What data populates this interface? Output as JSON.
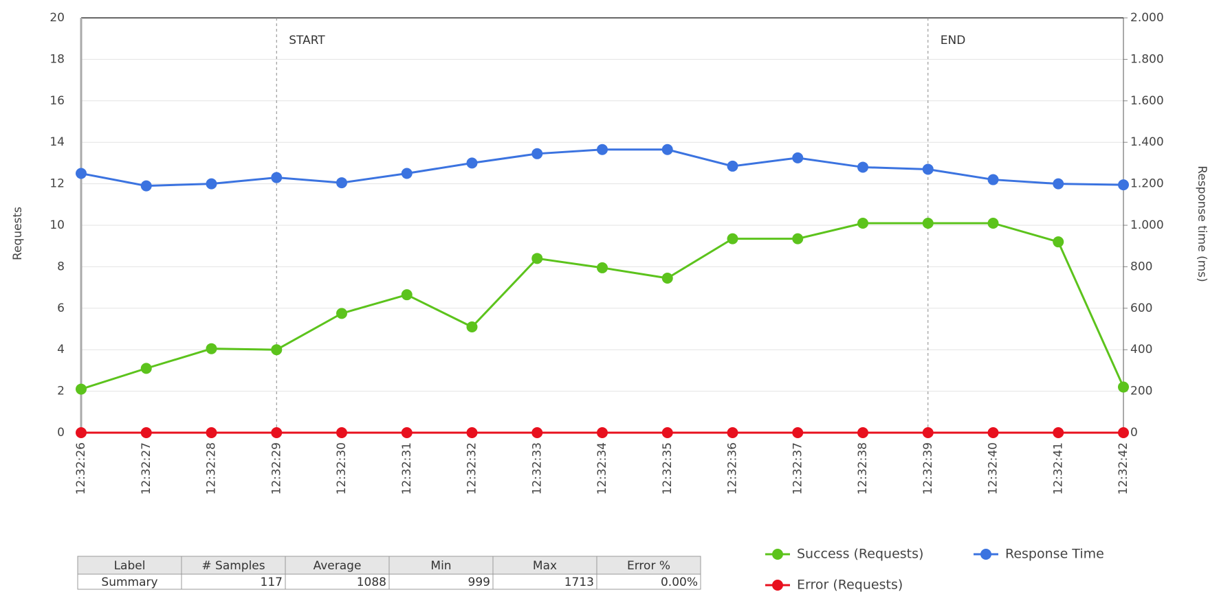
{
  "chart_data": {
    "type": "line",
    "categories": [
      "12:32:26",
      "12:32:27",
      "12:32:28",
      "12:32:29",
      "12:32:30",
      "12:32:31",
      "12:32:32",
      "12:32:33",
      "12:32:34",
      "12:32:35",
      "12:32:36",
      "12:32:37",
      "12:32:38",
      "12:32:39",
      "12:32:40",
      "12:32:41",
      "12:32:42"
    ],
    "series": [
      {
        "name": "Success (Requests)",
        "color": "#5cc31c",
        "values": [
          2.1,
          3.1,
          4.05,
          4.0,
          5.75,
          6.65,
          5.1,
          8.4,
          7.95,
          7.45,
          9.35,
          9.35,
          10.1,
          10.1,
          10.1,
          9.2,
          2.2
        ]
      },
      {
        "name": "Response Time",
        "color": "#3b73e0",
        "axis": "y2",
        "values": [
          1250,
          1190,
          1200,
          1230,
          1205,
          1250,
          1300,
          1345,
          1365,
          1365,
          1285,
          1325,
          1280,
          1270,
          1220,
          1200,
          1195
        ]
      },
      {
        "name": "Error (Requests)",
        "color": "#e8101e",
        "values": [
          0,
          0,
          0,
          0,
          0,
          0,
          0,
          0,
          0,
          0,
          0,
          0,
          0,
          0,
          0,
          0,
          0
        ]
      }
    ],
    "ylabel": "Requests",
    "y2label": "Response time (ms)",
    "ylim": [
      0,
      20
    ],
    "yticks": [
      0,
      2,
      4,
      6,
      8,
      10,
      12,
      14,
      16,
      18,
      20
    ],
    "y2lim": [
      0,
      2000
    ],
    "y2ticks": [
      0,
      200,
      400,
      600,
      800,
      {
        "value": 1000,
        "label": "1.000"
      },
      {
        "value": 1200,
        "label": "1.200"
      },
      {
        "value": 1400,
        "label": "1.400"
      },
      {
        "value": 1600,
        "label": "1.600"
      },
      {
        "value": 1800,
        "label": "1.800"
      },
      {
        "value": 2000,
        "label": "2.000"
      }
    ],
    "grid": true,
    "annotations": [
      {
        "label": "START",
        "x": "12:32:29"
      },
      {
        "label": "END",
        "x": "12:32:39"
      }
    ]
  },
  "table": {
    "columns": [
      "Label",
      "# Samples",
      "Average",
      "Min",
      "Max",
      "Error %"
    ],
    "rows": [
      [
        "Summary",
        117,
        1088,
        999,
        1713,
        "0.00%"
      ]
    ]
  }
}
